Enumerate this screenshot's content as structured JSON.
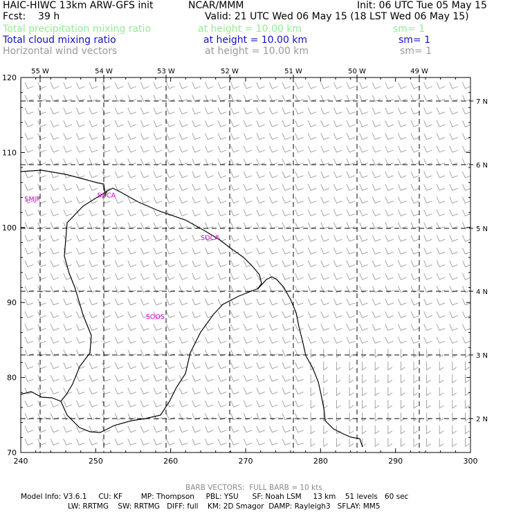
{
  "header": {
    "title_left": "HAIC-HIWC 13km ARW-GFS init",
    "org": "NCAR/MMM",
    "init": "Init: 06 UTC Tue 05 May 15",
    "fcst": "Fcst:    39 h",
    "valid": "Valid: 21 UTC Wed 06 May 15 (18 LST Wed 06 May 15)"
  },
  "fields": [
    {
      "name": "Total precipitation mixing ratio",
      "height": "at height = 10.00 km",
      "sm": "sm= 1",
      "color": "#90ee90"
    },
    {
      "name": "Total cloud mixing ratio",
      "height": "at height = 10.00 km",
      "sm": "sm= 1",
      "color": "#1010c0"
    },
    {
      "name": "Horizontal wind vectors",
      "height": "at height = 10.00 km",
      "sm": "sm= 1",
      "color": "#999999"
    }
  ],
  "axes": {
    "x_ticks": [
      240,
      250,
      260,
      270,
      280,
      290,
      300
    ],
    "y_ticks": [
      70,
      80,
      90,
      100,
      110,
      120
    ],
    "lon_labels": [
      "55 W",
      "54 W",
      "53 W",
      "52 W",
      "51 W",
      "50 W",
      "49 W"
    ],
    "lat_labels": [
      "7 N",
      "6 N",
      "5 N",
      "4 N",
      "3 N",
      "2 N"
    ]
  },
  "stations": [
    {
      "id": "SMJP",
      "x": 240.5,
      "y": 103.5
    },
    {
      "id": "SOCA",
      "x": 250.2,
      "y": 104.0
    },
    {
      "id": "SOCA",
      "x": 264.0,
      "y": 98.3
    },
    {
      "id": "SOOS",
      "x": 256.7,
      "y": 87.8
    }
  ],
  "colors": {
    "station": "#cc00cc",
    "barb": "#999999",
    "border": "#000000"
  },
  "footer": {
    "barb": "BARB VECTORS:  FULL BARB = 10 kts",
    "model1": "Model Info: V3.6.1     CU: KF        MP: Thompson     PBL: YSU      SF: Noah LSM     13 km    51 levels   60 sec",
    "model2": "LW: RRTMG    SW: RRTMG   DIFF: full    KM: 2D Smagor  DAMP: Rayleigh3   SFLAY: MM5"
  }
}
